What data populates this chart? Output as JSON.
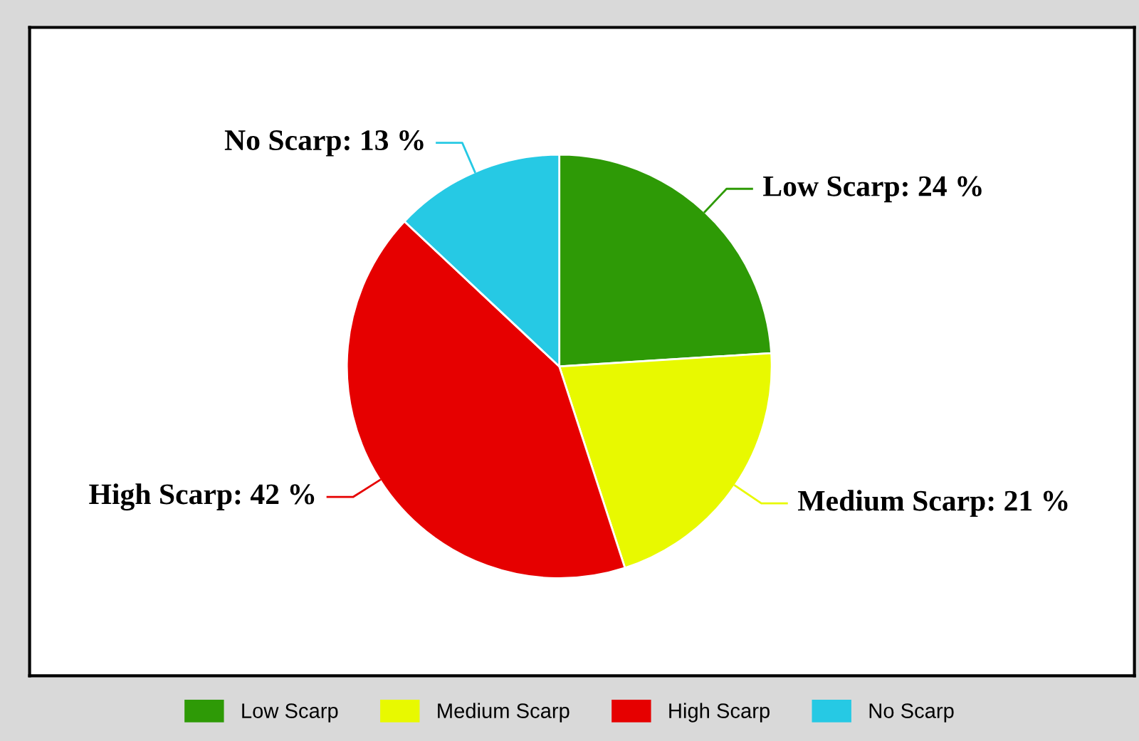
{
  "chart_data": {
    "type": "pie",
    "categories": [
      "Low Scarp",
      "Medium Scarp",
      "High Scarp",
      "No Scarp"
    ],
    "values": [
      24,
      21,
      42,
      13
    ],
    "colors": [
      "#2e9a06",
      "#e8f900",
      "#e60000",
      "#26c9e4"
    ],
    "value_labels": [
      "Low Scarp: 24 %",
      "Medium Scarp: 21 %",
      "High Scarp: 42 %",
      "No Scarp: 13 %"
    ],
    "legend": "bottom"
  }
}
